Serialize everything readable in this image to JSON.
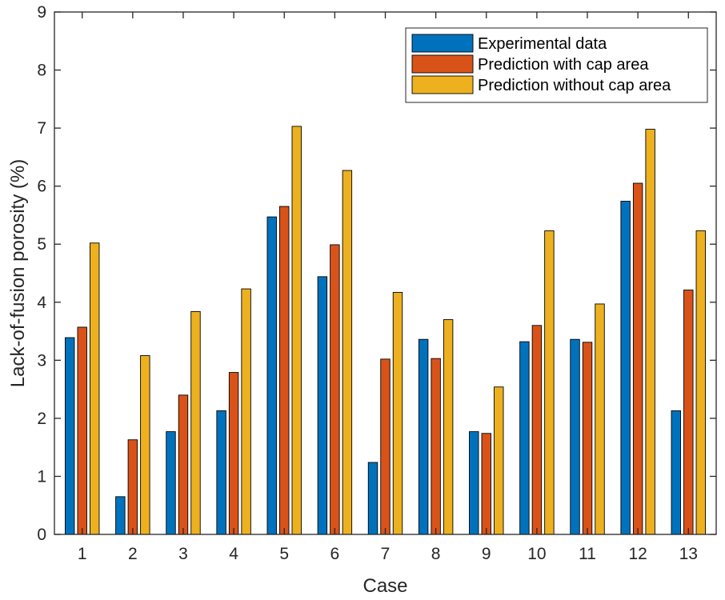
{
  "chart_data": {
    "type": "bar",
    "title": "",
    "xlabel": "Case",
    "ylabel": "Lack-of-fusion porosity (%)",
    "ylim": [
      0,
      9
    ],
    "yticks": [
      0,
      1,
      2,
      3,
      4,
      5,
      6,
      7,
      8,
      9
    ],
    "categories": [
      "1",
      "2",
      "3",
      "4",
      "5",
      "6",
      "7",
      "8",
      "9",
      "10",
      "11",
      "12",
      "13"
    ],
    "grid": false,
    "legend_position": "top-right",
    "series": [
      {
        "name": "Experimental data",
        "color": "#0072BD",
        "values": [
          3.39,
          0.65,
          1.77,
          2.13,
          5.47,
          4.44,
          1.24,
          3.36,
          1.77,
          3.32,
          3.36,
          5.74,
          2.13
        ]
      },
      {
        "name": "Prediction with cap area",
        "color": "#D95319",
        "values": [
          3.57,
          1.63,
          2.4,
          2.79,
          5.65,
          4.99,
          3.02,
          3.03,
          1.74,
          3.6,
          3.31,
          6.05,
          4.21
        ]
      },
      {
        "name": "Prediction without cap area",
        "color": "#EDB120",
        "values": [
          5.02,
          3.08,
          3.84,
          4.23,
          7.03,
          6.27,
          4.17,
          3.7,
          2.54,
          5.23,
          3.97,
          6.98,
          5.23
        ]
      }
    ]
  }
}
